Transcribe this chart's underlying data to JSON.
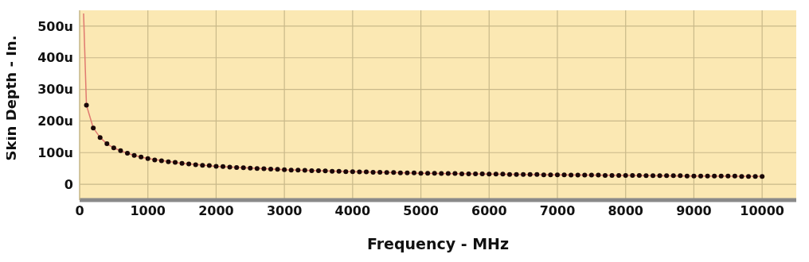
{
  "chart_data": {
    "type": "scatter",
    "xlabel": "Frequency - MHz",
    "ylabel": "Skin Depth - In.",
    "xlim": [
      0,
      10500
    ],
    "xticks": [
      0,
      1000,
      2000,
      3000,
      4000,
      5000,
      6000,
      7000,
      8000,
      9000,
      10000
    ],
    "ylim": [
      -50,
      550
    ],
    "yticks": [
      0,
      {
        "value": 100,
        "label": "100u"
      },
      {
        "value": 200,
        "label": "200u"
      },
      {
        "value": 300,
        "label": "300u"
      },
      {
        "value": 400,
        "label": "400u"
      },
      {
        "value": 500,
        "label": "500u"
      }
    ],
    "grid": true,
    "marker": "circle",
    "x": [
      100,
      200,
      300,
      400,
      500,
      600,
      700,
      800,
      900,
      1000,
      1100,
      1200,
      1300,
      1400,
      1500,
      1600,
      1700,
      1800,
      1900,
      2000,
      2100,
      2200,
      2300,
      2400,
      2500,
      2600,
      2700,
      2800,
      2900,
      3000,
      3100,
      3200,
      3300,
      3400,
      3500,
      3600,
      3700,
      3800,
      3900,
      4000,
      4100,
      4200,
      4300,
      4400,
      4500,
      4600,
      4700,
      4800,
      4900,
      5000,
      5100,
      5200,
      5300,
      5400,
      5500,
      5600,
      5700,
      5800,
      5900,
      6000,
      6100,
      6200,
      6300,
      6400,
      6500,
      6600,
      6700,
      6800,
      6900,
      7000,
      7100,
      7200,
      7300,
      7400,
      7500,
      7600,
      7700,
      7800,
      7900,
      8000,
      8100,
      8200,
      8300,
      8400,
      8500,
      8600,
      8700,
      8800,
      8900,
      9000,
      9100,
      9200,
      9300,
      9400,
      9500,
      9600,
      9700,
      9800,
      9900,
      10000
    ],
    "series": [
      {
        "type": "line",
        "color": "#e07a70",
        "marker": "none",
        "line_style": "solid",
        "x": [
          58,
          100,
          200,
          300,
          400,
          500,
          600,
          700,
          800,
          900,
          1000,
          1500,
          2000,
          3000,
          4000,
          5000,
          6000,
          7000,
          8000,
          9000,
          10000
        ],
        "values": [
          540,
          250,
          178,
          148,
          128,
          115,
          106,
          98,
          91,
          86,
          81,
          66,
          57,
          46,
          40,
          35,
          32,
          30,
          28,
          26,
          25
        ]
      },
      {
        "color": "#1a0808",
        "values": [
          250,
          178,
          148,
          128,
          115,
          106,
          98,
          91,
          86,
          81,
          77,
          74,
          71,
          69,
          66,
          64,
          62,
          60,
          59,
          57,
          56,
          54,
          53,
          52,
          51,
          50,
          49,
          48,
          47,
          46,
          45,
          45,
          44,
          43,
          43,
          42,
          41,
          41,
          40,
          40,
          39,
          39,
          38,
          38,
          37,
          37,
          36,
          36,
          36,
          35,
          35,
          35,
          34,
          34,
          34,
          33,
          33,
          33,
          33,
          32,
          32,
          32,
          31,
          31,
          31,
          31,
          31,
          30,
          30,
          30,
          30,
          29,
          29,
          29,
          29,
          29,
          28,
          28,
          28,
          28,
          28,
          28,
          27,
          27,
          27,
          27,
          27,
          27,
          26,
          26,
          26,
          26,
          26,
          26,
          26,
          26,
          25,
          25,
          25,
          25
        ]
      }
    ]
  }
}
